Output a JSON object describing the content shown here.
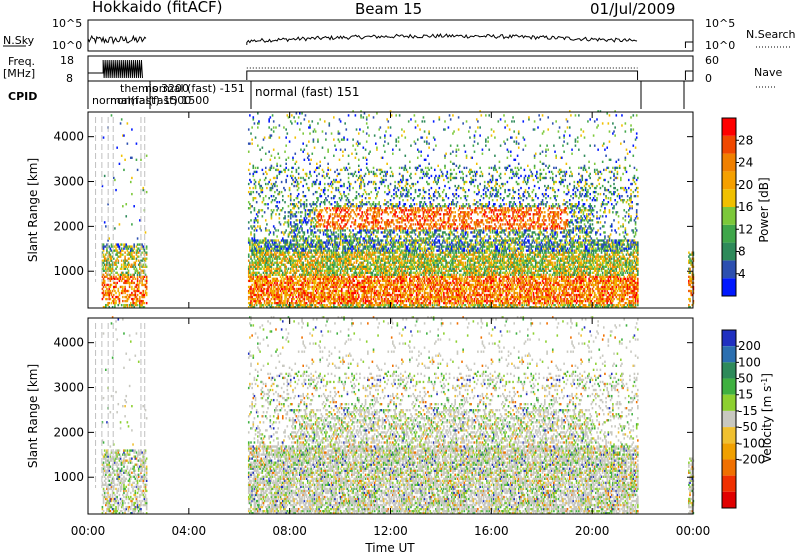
{
  "header": {
    "title": "Hokkaido (fitACF)",
    "beam": "Beam 15",
    "date": "01/Jul/2009"
  },
  "top_panels": {
    "nsky_label": "N.Sky",
    "nsky_ticks": [
      "10^5",
      "10^0"
    ],
    "nsearch_label": "N.Search",
    "nsearch_ticks": [
      "10^5",
      "10^0"
    ],
    "freq_label_1": "Freq.",
    "freq_label_2": "[MHz]",
    "freq_ticks": [
      "18",
      "8"
    ],
    "nave_label": "Nave",
    "nave_ticks": [
      "60",
      "0"
    ],
    "cpid_label": "CPID",
    "cpid_text_main": "normal (fast) 151",
    "cpid_text_early": "normal (fast) -151",
    "cpid_text_early2": "normal(fast) 1500",
    "cpid_text_early3": "themis 3200"
  },
  "chart_data": [
    {
      "type": "heatmap",
      "title": "Power",
      "ylabel": "Slant Range [km]",
      "xlabel": "",
      "ylim": [
        180,
        4550
      ],
      "yticks": [
        "1000",
        "2000",
        "3000",
        "4000"
      ],
      "colorbar_label": "Power [dB]",
      "colorbar_ticks": [
        "4",
        "8",
        "12",
        "16",
        "20",
        "24",
        "28"
      ],
      "colors": [
        "#0018ff",
        "#2c4fb0",
        "#2e8a5a",
        "#3fa64a",
        "#7cc83a",
        "#f0c000",
        "#f5a000",
        "#f08000",
        "#f04800",
        "#ff0000"
      ]
    },
    {
      "type": "heatmap",
      "title": "Velocity",
      "ylabel": "Slant Range [km]",
      "xlabel": "Time UT",
      "ylim": [
        180,
        4550
      ],
      "yticks": [
        "1000",
        "2000",
        "3000",
        "4000"
      ],
      "xticks": [
        "00:00",
        "04:00",
        "08:00",
        "12:00",
        "16:00",
        "20:00",
        "00:00"
      ],
      "colorbar_label": "Velocity [m s^-1]",
      "colorbar_ticks": [
        "200",
        "100",
        "50",
        "15",
        "-15",
        "-50",
        "-100",
        "-200"
      ],
      "colors": [
        "#2030c0",
        "#2b6fb0",
        "#2e8a5a",
        "#3fb040",
        "#8dd030",
        "#c8c8c0",
        "#f0c030",
        "#f0a000",
        "#f07000",
        "#f03000",
        "#e00000"
      ]
    }
  ]
}
